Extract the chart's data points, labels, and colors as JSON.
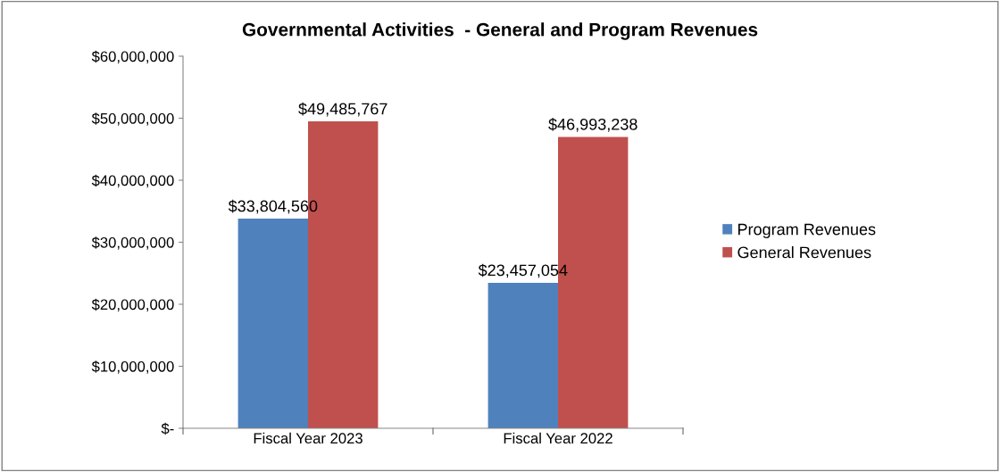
{
  "chart_data": {
    "type": "bar",
    "title": "Governmental Activities  - General and Program Revenues",
    "categories": [
      "Fiscal Year 2023",
      "Fiscal Year 2022"
    ],
    "series": [
      {
        "name": "Program Revenues",
        "color": "#4f81bd",
        "values": [
          33804560,
          23457054
        ],
        "value_labels": [
          "$33,804,560",
          "$23,457,054"
        ]
      },
      {
        "name": "General Revenues",
        "color": "#c0504d",
        "values": [
          49485767,
          46993238
        ],
        "value_labels": [
          "$49,485,767",
          "$46,993,238"
        ]
      }
    ],
    "ylim": [
      0,
      60000000
    ],
    "yticks": [
      {
        "value": 0,
        "label": "$-"
      },
      {
        "value": 10000000,
        "label": "$10,000,000"
      },
      {
        "value": 20000000,
        "label": "$20,000,000"
      },
      {
        "value": 30000000,
        "label": "$30,000,000"
      },
      {
        "value": 40000000,
        "label": "$40,000,000"
      },
      {
        "value": 50000000,
        "label": "$50,000,000"
      },
      {
        "value": 60000000,
        "label": "$60,000,000"
      }
    ],
    "grid": false,
    "legend": "right"
  }
}
